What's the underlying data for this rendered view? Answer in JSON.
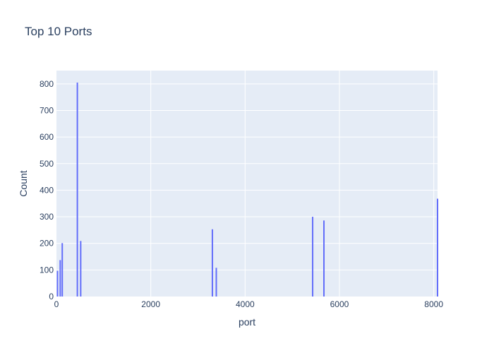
{
  "chart_data": {
    "type": "bar",
    "title": "Top 10 Ports",
    "xlabel": "port",
    "ylabel": "Count",
    "x": [
      22,
      80,
      123,
      443,
      514,
      3306,
      3389,
      5432,
      5671,
      8080
    ],
    "values": [
      97,
      137,
      201,
      805,
      209,
      253,
      108,
      300,
      286,
      368
    ],
    "xlim": [
      0,
      8080
    ],
    "ylim": [
      0,
      850
    ],
    "xticks": [
      0,
      2000,
      4000,
      6000,
      8000
    ],
    "xtick_labels": [
      "0",
      "2000",
      "4000",
      "6000",
      "8000"
    ],
    "yticks": [
      0,
      100,
      200,
      300,
      400,
      500,
      600,
      700,
      800
    ],
    "ytick_labels": [
      "0",
      "100",
      "200",
      "300",
      "400",
      "500",
      "600",
      "700",
      "800"
    ],
    "grid": true,
    "colors": {
      "bar": "#636efa",
      "plot_bg": "#e5ecf6",
      "grid": "#ffffff",
      "text": "#2a3f5f"
    }
  }
}
